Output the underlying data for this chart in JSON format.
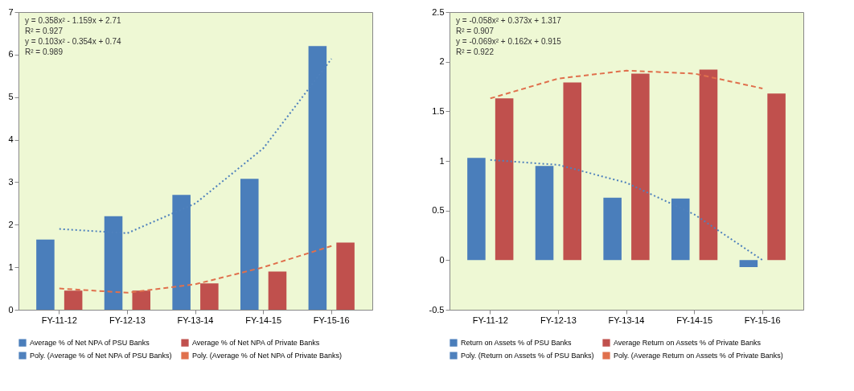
{
  "chart_data": [
    {
      "type": "bar",
      "categories": [
        "FY-11-12",
        "FY-12-13",
        "FY-13-14",
        "FY-14-15",
        "FY-15-16"
      ],
      "ylim": [
        0,
        7
      ],
      "yticks": [
        0,
        1,
        2,
        3,
        4,
        5,
        6,
        7
      ],
      "legend": "bottom",
      "series": [
        {
          "name": "Average % of Net NPA of PSU Banks",
          "color": "#4a7ebb",
          "values": [
            1.65,
            2.2,
            2.7,
            3.08,
            6.2
          ]
        },
        {
          "name": "Average % of Net NPA of Private Banks",
          "color": "#c0504d",
          "values": [
            0.45,
            0.45,
            0.62,
            0.9,
            1.58
          ]
        },
        {
          "name": "Poly. (Average % of Net NPA of PSU Banks)",
          "type": "line",
          "line_style": "dotted",
          "color": "#4f81bd",
          "values": [
            1.9,
            1.8,
            2.5,
            3.8,
            5.9
          ]
        },
        {
          "name": "Poly. (Average % of Net NPA of Private Banks)",
          "type": "line",
          "line_style": "dashed",
          "color": "#e0704d",
          "values": [
            0.5,
            0.4,
            0.6,
            1.0,
            1.5
          ]
        }
      ],
      "annotations": [
        "y = 0.358x² - 1.159x + 2.71",
        "R² = 0.927",
        "y = 0.103x² - 0.354x + 0.74",
        "R² = 0.989"
      ]
    },
    {
      "type": "bar",
      "categories": [
        "FY-11-12",
        "FY-12-13",
        "FY-13-14",
        "FY-14-15",
        "FY-15-16"
      ],
      "ylim": [
        -0.5,
        2.5
      ],
      "yticks": [
        -0.5,
        0,
        0.5,
        1,
        1.5,
        2,
        2.5
      ],
      "legend": "bottom",
      "series": [
        {
          "name": "Return on Assets % of PSU Banks",
          "color": "#4a7ebb",
          "values": [
            1.03,
            0.95,
            0.63,
            0.62,
            -0.07
          ]
        },
        {
          "name": "Average Return on Assets % of Private Banks",
          "color": "#c0504d",
          "values": [
            1.63,
            1.79,
            1.88,
            1.92,
            1.68
          ]
        },
        {
          "name": "Poly. (Return on Assets % of PSU Banks)",
          "type": "line",
          "line_style": "dotted",
          "color": "#4f81bd",
          "values": [
            1.01,
            0.96,
            0.78,
            0.46,
            0.0
          ]
        },
        {
          "name": "Poly. (Average Return on Assets % of Private Banks)",
          "type": "line",
          "line_style": "dashed",
          "color": "#e0704d",
          "values": [
            1.63,
            1.83,
            1.91,
            1.88,
            1.73
          ]
        }
      ],
      "annotations": [
        "y = -0.058x² + 0.373x + 1.317",
        "R² = 0.907",
        "y = -0.069x² + 0.162x + 0.915",
        "R² = 0.922"
      ]
    }
  ]
}
